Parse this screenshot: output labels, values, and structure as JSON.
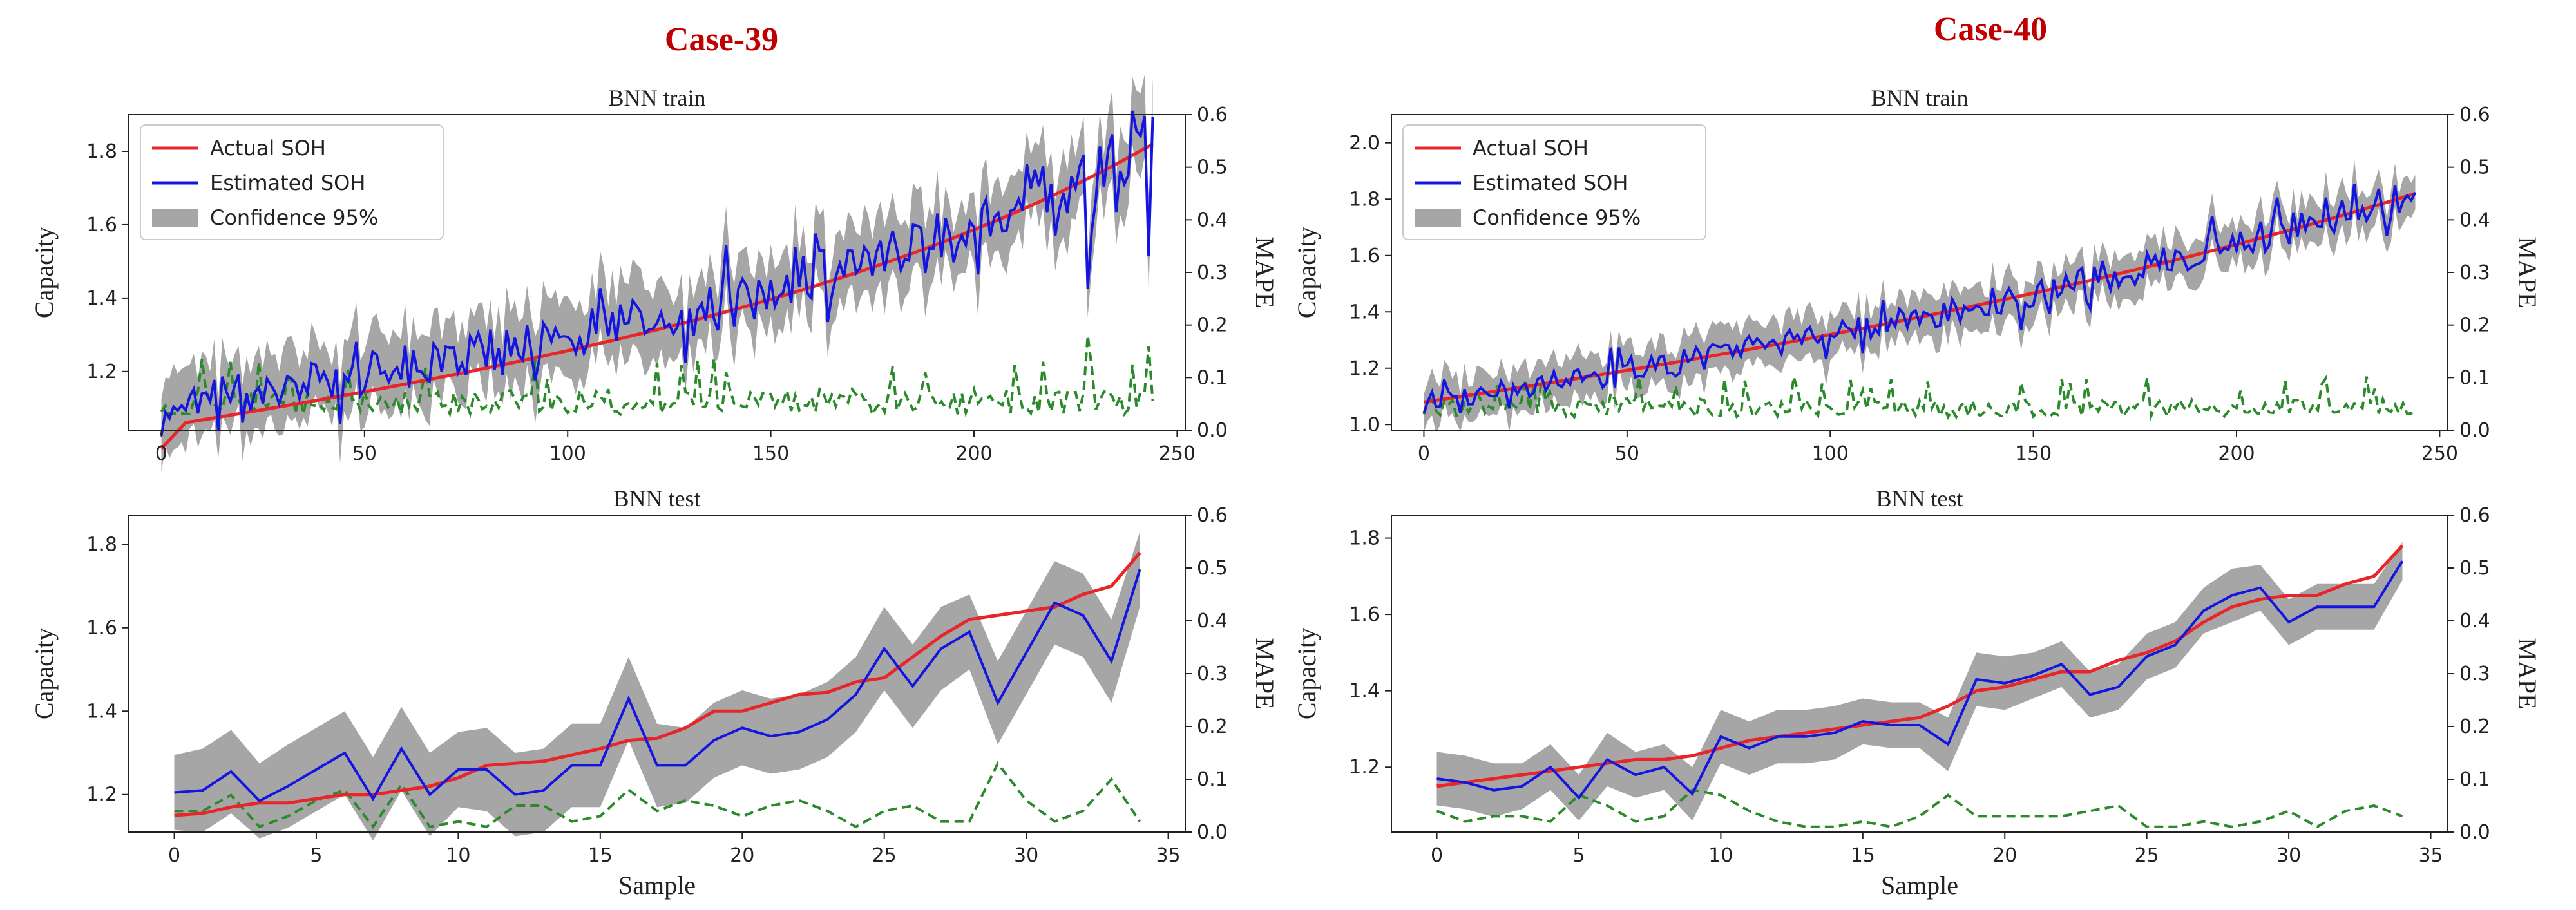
{
  "colors": {
    "actual": "#e8262a",
    "estimated": "#1515e0",
    "confidence": "#a6a6a6",
    "mape": "#2b8a2b",
    "title": "#c00000"
  },
  "chart_data": [
    {
      "id": "case39-train",
      "type": "line",
      "case_title": "Case-39",
      "title": "BNN train",
      "xlabel": "",
      "ylabel": "Capacity",
      "y2label": "MAPE",
      "xlim": [
        -8,
        252
      ],
      "ylim": [
        1.04,
        1.9
      ],
      "y2lim": [
        0,
        0.6
      ],
      "xticks": [
        0,
        50,
        100,
        150,
        200,
        250
      ],
      "yticks": [
        1.2,
        1.4,
        1.6,
        1.8
      ],
      "y2ticks": [
        0.0,
        0.1,
        0.2,
        0.3,
        0.4,
        0.5,
        0.6
      ],
      "legend": [
        "Actual SOH",
        "Estimated SOH",
        "Confidence 95%"
      ],
      "n": 245,
      "actual": {
        "start": 1.05,
        "end": 1.82,
        "curvature": 2.6,
        "jump": 0.06
      },
      "estimated": {
        "base": 0.06,
        "noise": 0.05,
        "spikes": [
          [
            228,
            -0.3
          ],
          [
            243,
            -0.3
          ]
        ]
      },
      "band_halfwidth": 0.09,
      "mape": {
        "base": 0.03,
        "noise": 0.03,
        "spikes": [
          [
            228,
            0.18
          ],
          [
            229,
            0.12
          ],
          [
            243,
            0.16
          ]
        ]
      },
      "seed": 39
    },
    {
      "id": "case40-train",
      "type": "line",
      "case_title": "Case-40",
      "title": "BNN train",
      "xlabel": "",
      "ylabel": "Capacity",
      "y2label": "MAPE",
      "xlim": [
        -8,
        252
      ],
      "ylim": [
        0.98,
        2.1
      ],
      "y2lim": [
        0,
        0.6
      ],
      "xticks": [
        0,
        50,
        100,
        150,
        200,
        250
      ],
      "yticks": [
        1.0,
        1.2,
        1.4,
        1.6,
        1.8,
        2.0
      ],
      "y2ticks": [
        0.0,
        0.1,
        0.2,
        0.3,
        0.4,
        0.5,
        0.6
      ],
      "legend": [
        "Actual SOH",
        "Estimated SOH",
        "Confidence 95%"
      ],
      "n": 245,
      "actual": {
        "start": 1.08,
        "end": 1.82,
        "curvature": 1.4,
        "jump": 0.0
      },
      "estimated": {
        "base": 0.0,
        "noise": 0.035,
        "spikes": [
          [
            46,
            0.09
          ],
          [
            147,
            -0.12
          ],
          [
            229,
            0.1
          ]
        ]
      },
      "band_halfwidth": 0.07,
      "mape": {
        "base": 0.025,
        "noise": 0.022,
        "spikes": [
          [
            46,
            0.07
          ],
          [
            50,
            0.06
          ],
          [
            147,
            0.09
          ]
        ]
      },
      "seed": 40
    },
    {
      "id": "case39-test",
      "type": "line",
      "title": "BNN test",
      "xlabel": "Sample",
      "ylabel": "Capacity",
      "y2label": "MAPE",
      "xlim": [
        -1.6,
        35.6
      ],
      "ylim": [
        1.11,
        1.87
      ],
      "y2lim": [
        0,
        0.6
      ],
      "xticks": [
        0,
        5,
        10,
        15,
        20,
        25,
        30,
        35
      ],
      "yticks": [
        1.2,
        1.4,
        1.6,
        1.8
      ],
      "y2ticks": [
        0.0,
        0.1,
        0.2,
        0.3,
        0.4,
        0.5,
        0.6
      ],
      "x": [
        0,
        1,
        2,
        3,
        4,
        5,
        6,
        7,
        8,
        9,
        10,
        11,
        12,
        13,
        14,
        15,
        16,
        17,
        18,
        19,
        20,
        21,
        22,
        23,
        24,
        25,
        26,
        27,
        28,
        29,
        30,
        31,
        32,
        33,
        34
      ],
      "actual": [
        1.15,
        1.155,
        1.17,
        1.18,
        1.18,
        1.19,
        1.2,
        1.2,
        1.21,
        1.22,
        1.24,
        1.27,
        1.275,
        1.28,
        1.295,
        1.31,
        1.33,
        1.335,
        1.36,
        1.4,
        1.4,
        1.42,
        1.44,
        1.445,
        1.47,
        1.48,
        1.53,
        1.58,
        1.62,
        1.63,
        1.64,
        1.65,
        1.68,
        1.7,
        1.78
      ],
      "estimated": [
        1.205,
        1.21,
        1.255,
        1.185,
        1.22,
        1.26,
        1.3,
        1.19,
        1.31,
        1.2,
        1.26,
        1.26,
        1.2,
        1.21,
        1.27,
        1.27,
        1.43,
        1.27,
        1.27,
        1.33,
        1.36,
        1.34,
        1.35,
        1.38,
        1.44,
        1.55,
        1.46,
        1.55,
        1.59,
        1.42,
        1.54,
        1.66,
        1.63,
        1.52,
        1.74
      ],
      "band": [
        0.09,
        0.1,
        0.1,
        0.09,
        0.1,
        0.1,
        0.1,
        0.1,
        0.1,
        0.1,
        0.09,
        0.1,
        0.1,
        0.1,
        0.1,
        0.1,
        0.1,
        0.1,
        0.09,
        0.09,
        0.09,
        0.09,
        0.09,
        0.09,
        0.09,
        0.1,
        0.1,
        0.1,
        0.09,
        0.1,
        0.1,
        0.1,
        0.1,
        0.1,
        0.09
      ],
      "mape": [
        0.04,
        0.04,
        0.07,
        0.01,
        0.03,
        0.06,
        0.08,
        0.01,
        0.09,
        0.01,
        0.02,
        0.01,
        0.05,
        0.05,
        0.02,
        0.03,
        0.08,
        0.04,
        0.06,
        0.05,
        0.03,
        0.05,
        0.06,
        0.04,
        0.01,
        0.04,
        0.05,
        0.02,
        0.02,
        0.13,
        0.06,
        0.02,
        0.04,
        0.1,
        0.02
      ],
      "legend": []
    },
    {
      "id": "case40-test",
      "type": "line",
      "title": "BNN test",
      "xlabel": "Sample",
      "ylabel": "Capacity",
      "y2label": "MAPE",
      "xlim": [
        -1.6,
        35.6
      ],
      "ylim": [
        1.03,
        1.86
      ],
      "y2lim": [
        0,
        0.6
      ],
      "xticks": [
        0,
        5,
        10,
        15,
        20,
        25,
        30,
        35
      ],
      "yticks": [
        1.2,
        1.4,
        1.6,
        1.8
      ],
      "y2ticks": [
        0.0,
        0.1,
        0.2,
        0.3,
        0.4,
        0.5,
        0.6
      ],
      "x": [
        0,
        1,
        2,
        3,
        4,
        5,
        6,
        7,
        8,
        9,
        10,
        11,
        12,
        13,
        14,
        15,
        16,
        17,
        18,
        19,
        20,
        21,
        22,
        23,
        24,
        25,
        26,
        27,
        28,
        29,
        30,
        31,
        32,
        33,
        34
      ],
      "actual": [
        1.15,
        1.16,
        1.17,
        1.18,
        1.19,
        1.2,
        1.21,
        1.22,
        1.22,
        1.23,
        1.25,
        1.27,
        1.28,
        1.29,
        1.3,
        1.31,
        1.32,
        1.33,
        1.36,
        1.4,
        1.41,
        1.43,
        1.45,
        1.45,
        1.48,
        1.5,
        1.53,
        1.58,
        1.62,
        1.64,
        1.65,
        1.65,
        1.68,
        1.7,
        1.78
      ],
      "estimated": [
        1.17,
        1.16,
        1.14,
        1.15,
        1.2,
        1.12,
        1.22,
        1.18,
        1.2,
        1.13,
        1.28,
        1.25,
        1.28,
        1.28,
        1.29,
        1.32,
        1.31,
        1.31,
        1.26,
        1.43,
        1.42,
        1.44,
        1.47,
        1.39,
        1.41,
        1.49,
        1.52,
        1.61,
        1.65,
        1.67,
        1.58,
        1.62,
        1.62,
        1.62,
        1.74
      ],
      "band": [
        0.07,
        0.07,
        0.07,
        0.06,
        0.06,
        0.06,
        0.07,
        0.06,
        0.06,
        0.07,
        0.07,
        0.07,
        0.07,
        0.07,
        0.07,
        0.06,
        0.06,
        0.06,
        0.07,
        0.07,
        0.07,
        0.06,
        0.06,
        0.06,
        0.06,
        0.06,
        0.06,
        0.06,
        0.07,
        0.06,
        0.06,
        0.06,
        0.06,
        0.06,
        0.05
      ],
      "mape": [
        0.04,
        0.02,
        0.03,
        0.03,
        0.02,
        0.07,
        0.05,
        0.02,
        0.03,
        0.08,
        0.07,
        0.04,
        0.02,
        0.01,
        0.01,
        0.02,
        0.01,
        0.03,
        0.07,
        0.03,
        0.03,
        0.03,
        0.03,
        0.04,
        0.05,
        0.01,
        0.01,
        0.02,
        0.01,
        0.02,
        0.04,
        0.01,
        0.04,
        0.05,
        0.03
      ],
      "legend": []
    }
  ]
}
